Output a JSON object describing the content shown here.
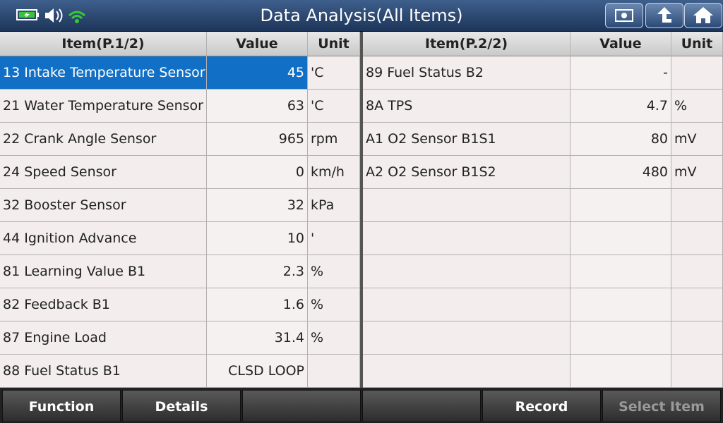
{
  "header": {
    "title": "Data Analysis(All Items)"
  },
  "left_table": {
    "columns": [
      "Item(P.1/2)",
      "Value",
      "Unit"
    ],
    "selected_row": 0,
    "rows": [
      {
        "item": "13 Intake Temperature Sensor",
        "value": "45",
        "unit": "'C"
      },
      {
        "item": "21 Water Temperature Sensor",
        "value": "63",
        "unit": "'C"
      },
      {
        "item": "22 Crank Angle Sensor",
        "value": "965",
        "unit": "rpm"
      },
      {
        "item": "24 Speed Sensor",
        "value": "0",
        "unit": "km/h"
      },
      {
        "item": "32 Booster Sensor",
        "value": "32",
        "unit": "kPa"
      },
      {
        "item": "44 Ignition Advance",
        "value": "10",
        "unit": "'"
      },
      {
        "item": "81 Learning Value B1",
        "value": "2.3",
        "unit": "%"
      },
      {
        "item": "82 Feedback B1",
        "value": "1.6",
        "unit": "%"
      },
      {
        "item": "87 Engine Load",
        "value": "31.4",
        "unit": "%"
      },
      {
        "item": "88 Fuel Status B1",
        "value": "CLSD LOOP"
      }
    ]
  },
  "right_table": {
    "columns": [
      "Item(P.2/2)",
      "Value",
      "Unit"
    ],
    "rows": [
      {
        "item": "89 Fuel Status B2",
        "value": "-"
      },
      {
        "item": "8A TPS",
        "value": "4.7",
        "unit": "%"
      },
      {
        "item": "A1 O2 Sensor B1S1",
        "value": "80",
        "unit": "mV"
      },
      {
        "item": "A2 O2 Sensor B1S2",
        "value": "480",
        "unit": "mV"
      }
    ]
  },
  "footer": {
    "buttons": [
      "Function",
      "Details",
      "Record",
      "Select Item"
    ]
  }
}
